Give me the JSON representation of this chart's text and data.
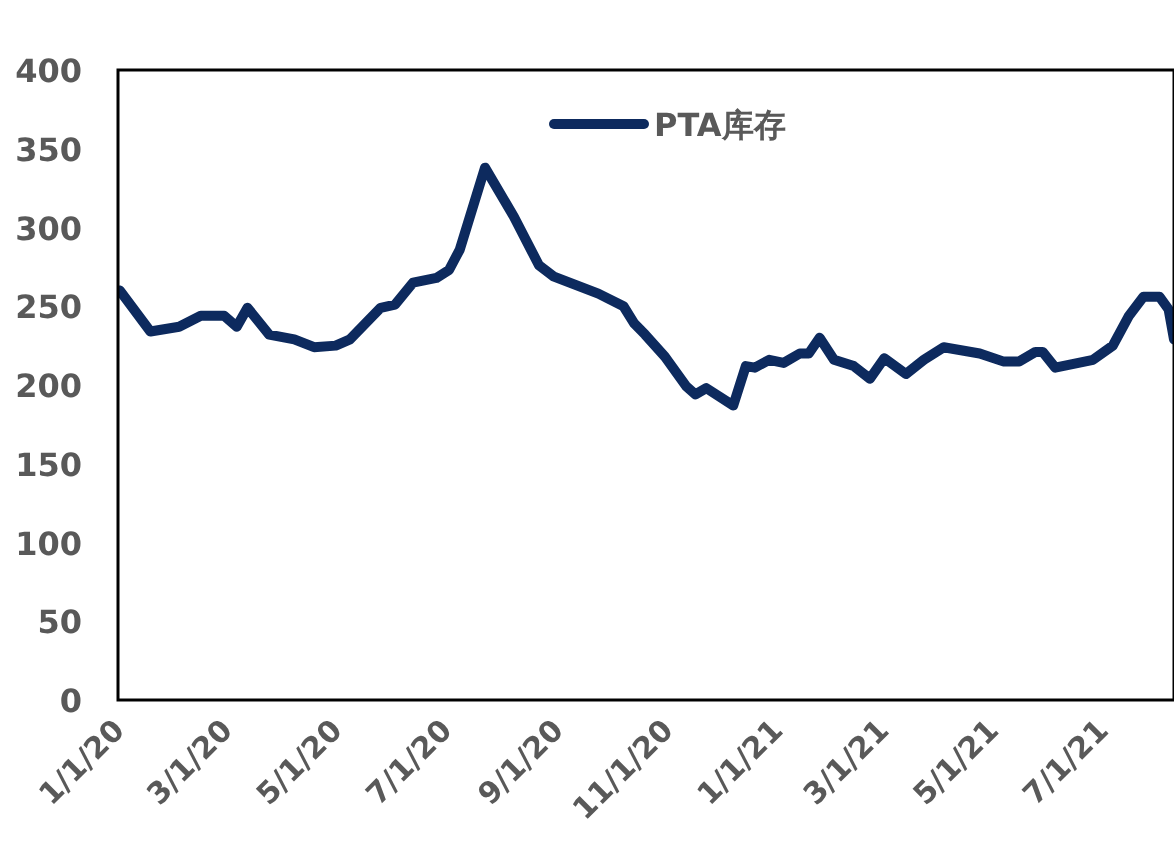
{
  "chart_data": {
    "type": "line",
    "x": [
      "2020-01-02",
      "2020-01-19",
      "2020-02-04",
      "2020-02-16",
      "2020-02-29",
      "2020-03-07",
      "2020-03-13",
      "2020-03-25",
      "2020-04-08",
      "2020-04-19",
      "2020-05-01",
      "2020-05-09",
      "2020-05-26",
      "2020-06-03",
      "2020-06-13",
      "2020-06-26",
      "2020-07-03",
      "2020-07-09",
      "2020-07-23",
      "2020-08-08",
      "2020-08-22",
      "2020-08-30",
      "2020-09-24",
      "2020-10-08",
      "2020-10-14",
      "2020-10-20",
      "2020-10-31",
      "2020-11-12",
      "2020-11-17",
      "2020-11-23",
      "2020-12-08",
      "2020-12-15",
      "2020-12-20",
      "2020-12-28",
      "2021-01-05",
      "2021-01-14",
      "2021-01-19",
      "2021-01-25",
      "2021-02-02",
      "2021-02-13",
      "2021-02-22",
      "2021-03-02",
      "2021-03-14",
      "2021-03-24",
      "2021-04-04",
      "2021-04-24",
      "2021-05-07",
      "2021-05-16",
      "2021-05-25",
      "2021-05-29",
      "2021-06-05",
      "2021-06-26",
      "2021-07-07",
      "2021-07-16",
      "2021-07-24",
      "2021-08-02",
      "2021-08-07",
      "2021-08-10"
    ],
    "series": [
      {
        "name": "PTA库存",
        "color": "#0d2a5e",
        "values": [
          260,
          234,
          237,
          244,
          244,
          237,
          249,
          232,
          229,
          224,
          225,
          229,
          249,
          251,
          265,
          268,
          273,
          286,
          338,
          307,
          276,
          269,
          258,
          250,
          239,
          232,
          218,
          199,
          194,
          198,
          187,
          212,
          211,
          216,
          214,
          220,
          220,
          230,
          216,
          212,
          204,
          217,
          207,
          216,
          224,
          220,
          215,
          215,
          221,
          221,
          211,
          216,
          225,
          244,
          256,
          256,
          248,
          229
        ]
      }
    ],
    "xlim": [
      "2020-01-01",
      "2021-08-10"
    ],
    "xticks": [
      {
        "value": "2020-01-01",
        "label": "1/1/20"
      },
      {
        "value": "2020-03-01",
        "label": "3/1/20"
      },
      {
        "value": "2020-05-01",
        "label": "5/1/20"
      },
      {
        "value": "2020-07-01",
        "label": "7/1/20"
      },
      {
        "value": "2020-09-01",
        "label": "9/1/20"
      },
      {
        "value": "2020-11-01",
        "label": "11/1/20"
      },
      {
        "value": "2021-01-01",
        "label": "1/1/21"
      },
      {
        "value": "2021-03-01",
        "label": "3/1/21"
      },
      {
        "value": "2021-05-01",
        "label": "5/1/21"
      },
      {
        "value": "2021-07-01",
        "label": "7/1/21"
      }
    ],
    "ylim": [
      0,
      400
    ],
    "yticks": [
      0,
      50,
      100,
      150,
      200,
      250,
      300,
      350,
      400
    ],
    "legend": "top",
    "marker": "none",
    "line_style": "solid"
  }
}
